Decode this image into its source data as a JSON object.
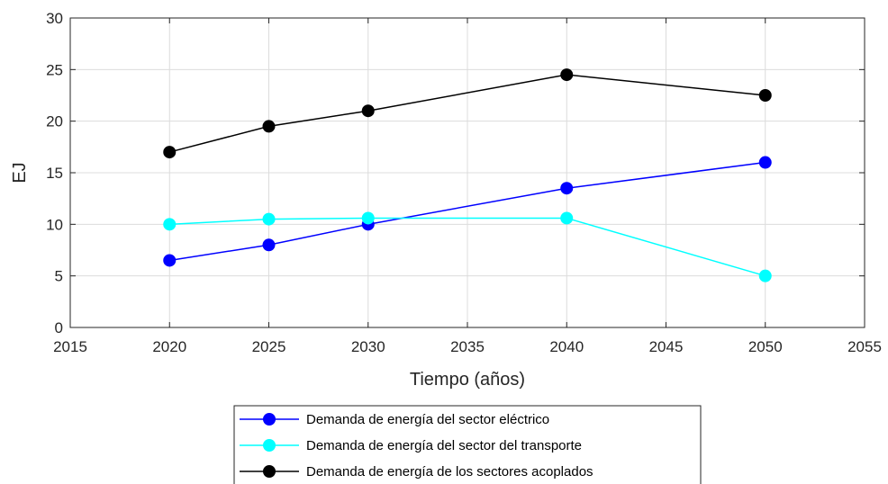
{
  "chart_data": {
    "type": "line",
    "xlabel": "Tiempo (años)",
    "ylabel": "EJ",
    "xlim": [
      2015,
      2055
    ],
    "ylim": [
      0,
      30
    ],
    "xticks": [
      2015,
      2020,
      2025,
      2030,
      2035,
      2040,
      2045,
      2050,
      2055
    ],
    "yticks": [
      0,
      5,
      10,
      15,
      20,
      25,
      30
    ],
    "grid": true,
    "legend_position": "below",
    "x": [
      2020,
      2025,
      2030,
      2040,
      2050
    ],
    "series": [
      {
        "name": "Demanda de energía del sector eléctrico",
        "color": "#0000ff",
        "values": [
          6.5,
          8,
          10,
          13.5,
          16
        ]
      },
      {
        "name": "Demanda de energía del sector del transporte",
        "color": "#00ffff",
        "values": [
          10,
          10.5,
          10.6,
          10.6,
          5
        ]
      },
      {
        "name": "Demanda de energía de los sectores acoplados",
        "color": "#000000",
        "values": [
          17,
          19.5,
          21,
          24.5,
          22.5
        ]
      }
    ]
  }
}
